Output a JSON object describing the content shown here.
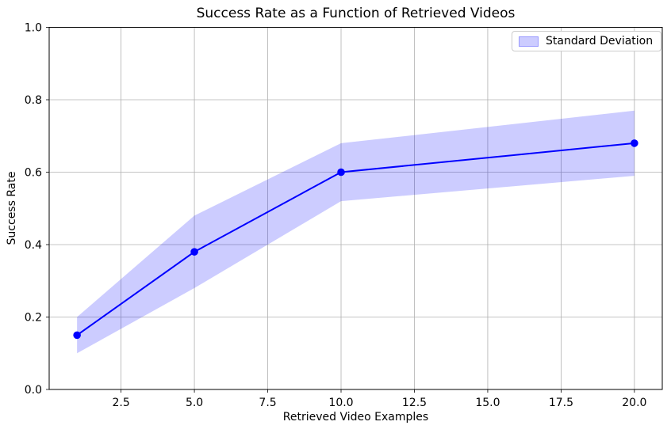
{
  "chart_data": {
    "type": "line",
    "title": "Success Rate as a Function of Retrieved Videos",
    "xlabel": "Retrieved Video Examples",
    "ylabel": "Success Rate",
    "x": [
      1,
      5,
      10,
      20
    ],
    "series": [
      {
        "name": "Success Rate",
        "values": [
          0.15,
          0.38,
          0.6,
          0.68
        ]
      }
    ],
    "std": [
      0.05,
      0.1,
      0.08,
      0.09
    ],
    "band_upper": [
      0.2,
      0.48,
      0.68,
      0.77
    ],
    "band_lower": [
      0.1,
      0.28,
      0.52,
      0.59
    ],
    "xlim": [
      0.05,
      20.95
    ],
    "ylim": [
      0.0,
      1.0
    ],
    "xticks": [
      2.5,
      5.0,
      7.5,
      10.0,
      12.5,
      15.0,
      17.5,
      20.0
    ],
    "yticks": [
      0.0,
      0.2,
      0.4,
      0.6,
      0.8,
      1.0
    ],
    "grid": true,
    "legend": {
      "label": "Standard Deviation",
      "position": "upper right"
    },
    "marker": "o",
    "colors": {
      "line": "#0000ff",
      "marker": "#0000ff",
      "band": "rgba(0,0,255,0.2)",
      "grid": "#b0b0b0",
      "spine": "#000000",
      "text": "#000000"
    }
  }
}
